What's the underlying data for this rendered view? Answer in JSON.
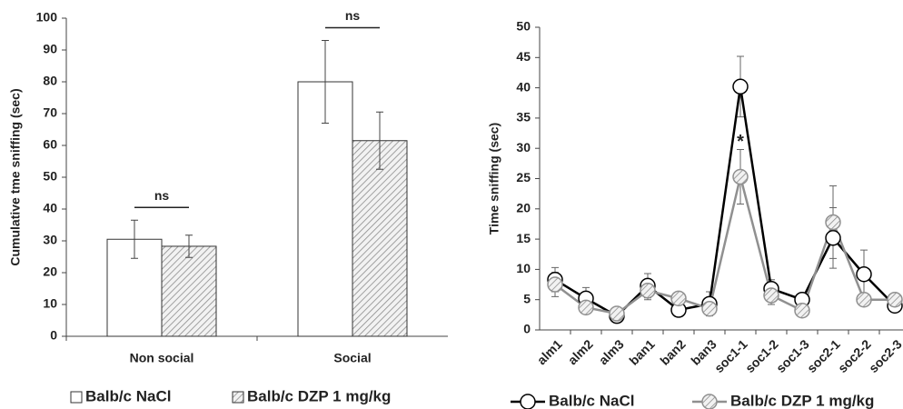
{
  "chart_data": [
    {
      "type": "bar",
      "y_label": "Cumulative tme sniffing (sec)",
      "categories": [
        "Non social",
        "Social"
      ],
      "series": [
        {
          "name": "Balb/c NaCl",
          "color": "#ffffff",
          "hatch": false,
          "values": [
            30.5,
            80
          ],
          "errors": [
            6,
            13
          ]
        },
        {
          "name": "Balb/c DZP 1 mg/kg",
          "color": "#d9d9d9",
          "hatch": true,
          "values": [
            28.3,
            61.5
          ],
          "errors": [
            3.5,
            9
          ]
        }
      ],
      "annotations": [
        "ns",
        "ns"
      ],
      "ylim": [
        0,
        100
      ],
      "yticks": [
        0,
        10,
        20,
        30,
        40,
        50,
        60,
        70,
        80,
        90,
        100
      ],
      "grid": false
    },
    {
      "type": "line",
      "y_label": "Time sniffing (sec)",
      "categories": [
        "alm1",
        "alm2",
        "alm3",
        "ban1",
        "ban2",
        "ban3",
        "soc1-1",
        "soc1-2",
        "soc1-3",
        "soc2-1",
        "soc2-2",
        "soc2-3"
      ],
      "series": [
        {
          "name": "Balb/c NaCl",
          "color": "#000000",
          "marker_fill": "#ffffff",
          "hatch": false,
          "values": [
            8.3,
            5.2,
            2.3,
            7.3,
            3.3,
            4.3,
            40.2,
            6.8,
            5.0,
            15.2,
            9.2,
            4.0
          ],
          "errors": [
            2,
            1.8,
            0.5,
            2,
            1,
            2,
            5,
            1.5,
            1,
            5,
            4,
            1
          ]
        },
        {
          "name": "Balb/c DZP 1 mg/kg",
          "color": "#909090",
          "marker_fill": "#d9d9d9",
          "hatch": true,
          "values": [
            7.5,
            3.7,
            2.7,
            6.5,
            5.2,
            3.5,
            25.3,
            5.7,
            3.2,
            17.8,
            5.0,
            5.0
          ],
          "errors": [
            2,
            1,
            0.5,
            1.5,
            1,
            1,
            4.5,
            1.5,
            0.8,
            6,
            1,
            1
          ]
        }
      ],
      "annotations": [
        "*"
      ],
      "ylim": [
        0,
        50
      ],
      "yticks": [
        0,
        5,
        10,
        15,
        20,
        25,
        30,
        35,
        40,
        45,
        50
      ],
      "grid": false
    }
  ]
}
